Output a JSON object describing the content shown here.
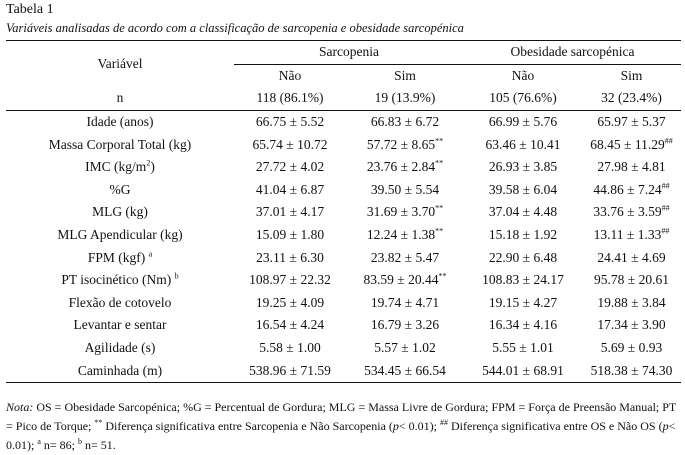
{
  "title": "Tabela 1",
  "subtitle": "Variáveis analisadas de acordo com a classificação de sarcopenia e obesidade sarcopénica",
  "header": {
    "variable": "Variável",
    "group1": "Sarcopenia",
    "group2": "Obesidade sarcopénica",
    "no": "Não",
    "yes": "Sim",
    "n_label": "n",
    "n": [
      "118 (86.1%)",
      "19 (13.9%)",
      "105 (76.6%)",
      "32 (23.4%)"
    ]
  },
  "rows": [
    {
      "label": "Idade (anos)",
      "sup": "",
      "cells": [
        [
          "66.75 ± 5.52",
          ""
        ],
        [
          "66.83 ± 6.72",
          ""
        ],
        [
          "66.99 ± 5.76",
          ""
        ],
        [
          "65.97 ± 5.37",
          ""
        ]
      ]
    },
    {
      "label": "Massa Corporal Total (kg)",
      "sup": "",
      "cells": [
        [
          "65.74 ± 10.72",
          ""
        ],
        [
          "57.72 ± 8.65",
          "**"
        ],
        [
          "63.46 ± 10.41",
          ""
        ],
        [
          "68.45 ± 11.29",
          "##"
        ]
      ]
    },
    {
      "label": "IMC (kg/m",
      "sup": "2",
      "label_end": ")",
      "cells": [
        [
          "27.72 ± 4.02",
          ""
        ],
        [
          "23.76 ± 2.84",
          "**"
        ],
        [
          "26.93 ± 3.85",
          ""
        ],
        [
          "27.98 ± 4.81",
          ""
        ]
      ]
    },
    {
      "label": "%G",
      "sup": "",
      "cells": [
        [
          "41.04 ± 6.87",
          ""
        ],
        [
          "39.50 ± 5.54",
          ""
        ],
        [
          "39.58 ± 6.04",
          ""
        ],
        [
          "44.86 ± 7.24",
          "##"
        ]
      ]
    },
    {
      "label": "MLG (kg)",
      "sup": "",
      "cells": [
        [
          "37.01 ± 4.17",
          ""
        ],
        [
          "31.69 ± 3.70",
          "**"
        ],
        [
          "37.04 ± 4.48",
          ""
        ],
        [
          "33.76 ± 3.59",
          "##"
        ]
      ]
    },
    {
      "label": "MLG Apendicular (kg)",
      "sup": "",
      "cells": [
        [
          "15.09 ± 1.80",
          ""
        ],
        [
          "12.24 ± 1.38",
          "**"
        ],
        [
          "15.18 ± 1.92",
          ""
        ],
        [
          "13.11 ± 1.33",
          "##"
        ]
      ]
    },
    {
      "label": "FPM (kgf) ",
      "sup": "a",
      "cells": [
        [
          "23.11 ± 6.30",
          ""
        ],
        [
          "23.82 ± 5.47",
          ""
        ],
        [
          "22.90 ± 6.48",
          ""
        ],
        [
          "24.41 ± 4.69",
          ""
        ]
      ]
    },
    {
      "label": "PT isocinético (Nm) ",
      "sup": "b",
      "cells": [
        [
          "108.97 ± 22.32",
          ""
        ],
        [
          "83.59 ± 20.44",
          "**"
        ],
        [
          "108.83 ± 24.17",
          ""
        ],
        [
          "95.78 ± 20.61",
          ""
        ]
      ]
    },
    {
      "label": "Flexão de cotovelo",
      "sup": "",
      "cells": [
        [
          "19.25 ± 4.09",
          ""
        ],
        [
          "19.74 ± 4.71",
          ""
        ],
        [
          "19.15 ± 4.27",
          ""
        ],
        [
          "19.88 ± 3.84",
          ""
        ]
      ]
    },
    {
      "label": "Levantar e sentar",
      "sup": "",
      "cells": [
        [
          "16.54 ± 4.24",
          ""
        ],
        [
          "16.79 ± 3.26",
          ""
        ],
        [
          "16.34 ± 4.16",
          ""
        ],
        [
          "17.34 ± 3.90",
          ""
        ]
      ]
    },
    {
      "label": "Agilidade (s)",
      "sup": "",
      "cells": [
        [
          "5.58 ± 1.00",
          ""
        ],
        [
          "5.57 ± 1.02",
          ""
        ],
        [
          "5.55 ± 1.01",
          ""
        ],
        [
          "5.69 ± 0.93",
          ""
        ]
      ]
    },
    {
      "label": "Caminhada (m)",
      "sup": "",
      "cells": [
        [
          "538.96 ± 71.59",
          ""
        ],
        [
          "534.45 ± 66.54",
          ""
        ],
        [
          "544.01 ± 68.91",
          ""
        ],
        [
          "518.38 ± 74.30",
          ""
        ]
      ]
    }
  ],
  "note": {
    "label": "Nota:",
    "t1": " OS = Obesidade Sarcopénica; %G = Percentual de Gordura; MLG = Massa Livre de Gordura; FPM = Força de Preensão Manual; PT = Pico de Torque; ",
    "s1": "**",
    "t2": " Diferença significativa entre Sarcopenia e Não Sarcopenia (",
    "p": "p",
    "t3": "< 0.01); ",
    "s2": "##",
    "t4": " Diferença significativa entre OS e Não OS (",
    "t5": "< 0.01); ",
    "s3": "a",
    "t6": " n= 86; ",
    "s4": "b",
    "t7": " n= 51."
  }
}
